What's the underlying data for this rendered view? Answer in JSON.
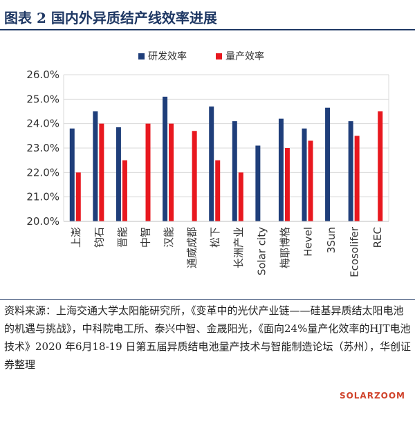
{
  "title": "图表 2   国内外异质结产线效率进展",
  "source": "资料来源：上海交通大学太阳能研究所，《变革中的光伏产业链——硅基异质结太阳电池的机遇与挑战》，中科院电工所、泰兴中智、金晟阳光，《面向24%量产化效率的HJT电池技术》2020 年6月18-19 日第五届异质结电池量产技术与智能制造论坛（苏州），华创证券整理",
  "watermark": "SOLARZOOM",
  "colors": {
    "rd": "#1f3e7a",
    "mass": "#e8181f",
    "title": "#1f3864"
  },
  "chart_data": {
    "type": "bar",
    "categories": [
      "上澎",
      "钧石",
      "晋能",
      "中智",
      "汉能",
      "通威成都",
      "松下",
      "长洲产业",
      "Solar city",
      "梅耶博格",
      "Hevel",
      "3Sun",
      "Ecosolifer",
      "REC"
    ],
    "series": [
      {
        "name": "研发效率",
        "values": [
          23.8,
          24.5,
          23.85,
          null,
          25.1,
          null,
          24.7,
          24.1,
          23.1,
          24.2,
          23.8,
          24.65,
          24.1,
          null
        ]
      },
      {
        "name": "量产效率",
        "values": [
          22.0,
          24.0,
          22.5,
          24.0,
          24.0,
          23.7,
          22.5,
          22.0,
          null,
          23.0,
          23.3,
          null,
          23.5,
          24.5
        ]
      }
    ],
    "ylim": [
      20.0,
      26.0
    ],
    "yticks": [
      "20.0%",
      "21.0%",
      "22.0%",
      "23.0%",
      "24.0%",
      "25.0%",
      "26.0%"
    ],
    "xlabel": "",
    "ylabel": "",
    "legend": "top-center",
    "grid": true
  }
}
